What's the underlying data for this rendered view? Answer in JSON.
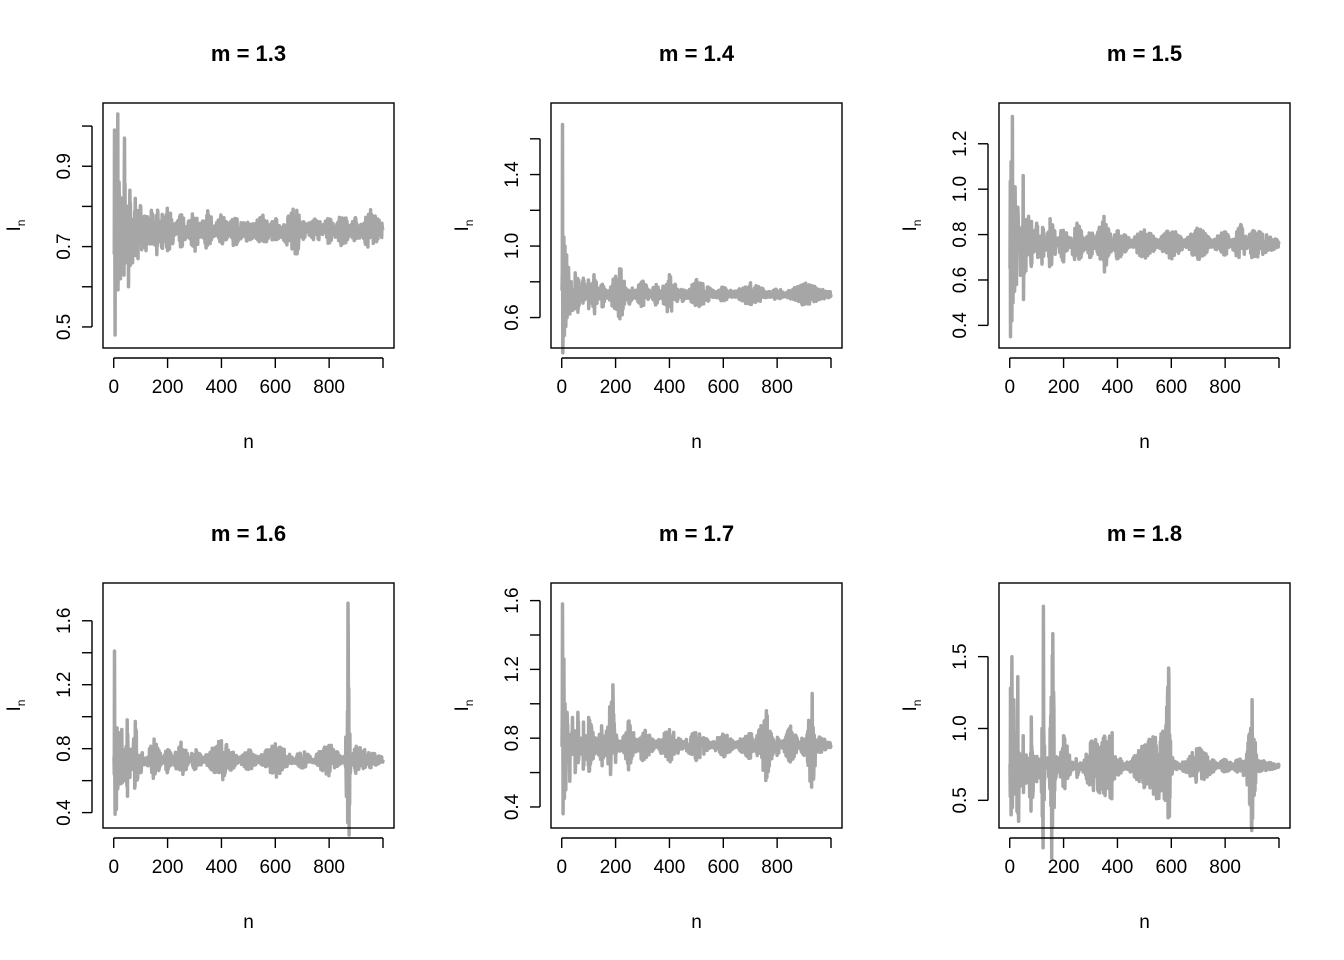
{
  "chart_data": [
    {
      "type": "line",
      "title": "m =  1.3",
      "xlabel": "n",
      "ylabel": "I",
      "ylabel_subscript": "n",
      "xlim": [
        1,
        1000
      ],
      "ylim": [
        0.47,
        1.035
      ],
      "xticks": [
        0,
        200,
        400,
        600,
        800
      ],
      "yticks": [
        0.5,
        0.6,
        0.7,
        0.8,
        0.9,
        1.0
      ],
      "ytick_labels": [
        "0.5",
        "",
        "0.7",
        "",
        "0.9",
        ""
      ],
      "line_color": "#a6a6a6",
      "series": [
        {
          "x": [
            1,
            3,
            5,
            8,
            10,
            12,
            15,
            18,
            20,
            25,
            30,
            35,
            40,
            45,
            50,
            55,
            60,
            70,
            80,
            90,
            100,
            120,
            140,
            160,
            180,
            200,
            250,
            300,
            350,
            400,
            450,
            500,
            550,
            600,
            650,
            680,
            700,
            750,
            800,
            850,
            900,
            950,
            1000
          ],
          "y": [
            0.68,
            0.99,
            0.48,
            0.6,
            0.93,
            0.63,
            1.03,
            0.7,
            0.86,
            0.62,
            0.82,
            0.64,
            0.97,
            0.66,
            0.8,
            0.6,
            0.84,
            0.66,
            0.82,
            0.67,
            0.8,
            0.69,
            0.79,
            0.68,
            0.78,
            0.69,
            0.77,
            0.7,
            0.78,
            0.71,
            0.77,
            0.72,
            0.77,
            0.72,
            0.77,
            0.79,
            0.73,
            0.76,
            0.72,
            0.77,
            0.72,
            0.78,
            0.74
          ]
        }
      ]
    },
    {
      "type": "line",
      "title": "m =  1.4",
      "xlabel": "n",
      "ylabel": "I",
      "ylabel_subscript": "n",
      "xlim": [
        1,
        1000
      ],
      "ylim": [
        0.48,
        1.75
      ],
      "xticks": [
        0,
        200,
        400,
        600,
        800
      ],
      "yticks": [
        0.6,
        0.8,
        1.0,
        1.2,
        1.4,
        1.6
      ],
      "ytick_labels": [
        "0.6",
        "",
        "1.0",
        "",
        "1.4",
        ""
      ],
      "line_color": "#a6a6a6",
      "series": [
        {
          "x": [
            1,
            3,
            5,
            8,
            10,
            12,
            15,
            18,
            20,
            25,
            30,
            35,
            40,
            50,
            60,
            80,
            100,
            120,
            150,
            200,
            220,
            250,
            300,
            350,
            400,
            450,
            500,
            600,
            700,
            800,
            900,
            1000
          ],
          "y": [
            0.75,
            1.68,
            0.52,
            1.05,
            0.5,
            1.0,
            0.55,
            0.95,
            0.6,
            0.88,
            0.62,
            0.8,
            0.64,
            0.85,
            0.63,
            0.82,
            0.65,
            0.84,
            0.66,
            0.83,
            0.87,
            0.68,
            0.8,
            0.68,
            0.84,
            0.7,
            0.8,
            0.7,
            0.78,
            0.71,
            0.78,
            0.73
          ]
        }
      ]
    },
    {
      "type": "line",
      "title": "m =  1.5",
      "xlabel": "n",
      "ylabel": "I",
      "ylabel_subscript": "n",
      "xlim": [
        1,
        1000
      ],
      "ylim": [
        0.34,
        1.34
      ],
      "xticks": [
        0,
        200,
        400,
        600,
        800
      ],
      "yticks": [
        0.4,
        0.6,
        0.8,
        1.0,
        1.2
      ],
      "ytick_labels": [
        "0.4",
        "0.6",
        "0.8",
        "1.0",
        "1.2"
      ],
      "line_color": "#a6a6a6",
      "series": [
        {
          "x": [
            1,
            3,
            5,
            8,
            10,
            12,
            15,
            18,
            20,
            25,
            30,
            40,
            50,
            60,
            70,
            80,
            100,
            120,
            150,
            200,
            250,
            300,
            350,
            400,
            500,
            600,
            700,
            800,
            860,
            900,
            1000
          ],
          "y": [
            0.65,
            0.35,
            1.12,
            0.42,
            1.32,
            0.5,
            0.9,
            0.55,
            1.01,
            0.58,
            0.92,
            0.62,
            1.06,
            0.64,
            0.88,
            0.66,
            0.85,
            0.67,
            0.87,
            0.68,
            0.85,
            0.7,
            0.88,
            0.7,
            0.82,
            0.7,
            0.82,
            0.71,
            0.84,
            0.7,
            0.76
          ]
        }
      ]
    },
    {
      "type": "line",
      "title": "m =  1.6",
      "xlabel": "n",
      "ylabel": "I",
      "ylabel_subscript": "n",
      "xlim": [
        1,
        1000
      ],
      "ylim": [
        0.36,
        1.78
      ],
      "xticks": [
        0,
        200,
        400,
        600,
        800
      ],
      "yticks": [
        0.4,
        0.6,
        0.8,
        1.0,
        1.2,
        1.4,
        1.6
      ],
      "ytick_labels": [
        "0.4",
        "",
        "0.8",
        "",
        "1.2",
        "",
        "1.6"
      ],
      "line_color": "#a6a6a6",
      "series": [
        {
          "x": [
            1,
            3,
            5,
            8,
            10,
            12,
            15,
            20,
            25,
            30,
            40,
            50,
            60,
            80,
            100,
            150,
            200,
            250,
            300,
            400,
            500,
            600,
            700,
            800,
            860,
            870,
            880,
            900,
            1000
          ],
          "y": [
            0.75,
            1.41,
            0.39,
            0.92,
            0.42,
            0.93,
            0.55,
            0.9,
            0.58,
            0.92,
            0.6,
            0.98,
            0.62,
            0.97,
            0.65,
            0.86,
            0.66,
            0.84,
            0.67,
            0.85,
            0.67,
            0.83,
            0.68,
            0.82,
            0.71,
            1.71,
            0.72,
            0.81,
            0.73
          ]
        }
      ]
    },
    {
      "type": "line",
      "title": "m =  1.7",
      "xlabel": "n",
      "ylabel": "I",
      "ylabel_subscript": "n",
      "xlim": [
        1,
        1000
      ],
      "ylim": [
        0.33,
        1.65
      ],
      "xticks": [
        0,
        200,
        400,
        600,
        800
      ],
      "yticks": [
        0.4,
        0.6,
        0.8,
        1.0,
        1.2,
        1.4,
        1.6
      ],
      "ytick_labels": [
        "0.4",
        "",
        "0.8",
        "",
        "1.2",
        "",
        "1.6"
      ],
      "line_color": "#a6a6a6",
      "series": [
        {
          "x": [
            1,
            3,
            5,
            8,
            10,
            12,
            15,
            20,
            30,
            40,
            50,
            60,
            80,
            100,
            150,
            190,
            200,
            250,
            300,
            400,
            500,
            600,
            700,
            760,
            800,
            850,
            900,
            930,
            950,
            1000
          ],
          "y": [
            0.75,
            1.58,
            0.36,
            1.26,
            0.45,
            1.0,
            0.5,
            0.95,
            0.55,
            0.92,
            0.6,
            0.95,
            0.62,
            0.92,
            0.64,
            1.11,
            0.66,
            0.9,
            0.67,
            0.85,
            0.68,
            0.82,
            0.69,
            0.96,
            0.7,
            0.87,
            0.7,
            1.06,
            0.72,
            0.76
          ]
        }
      ]
    },
    {
      "type": "line",
      "title": "m =  1.8",
      "xlabel": "n",
      "ylabel": "I",
      "ylabel_subscript": "n",
      "xlim": [
        1,
        1000
      ],
      "ylim": [
        0.37,
        1.95
      ],
      "xticks": [
        0,
        200,
        400,
        600,
        800
      ],
      "yticks": [
        0.5,
        1.0,
        1.5
      ],
      "ytick_labels": [
        "0.5",
        "1.0",
        "1.5"
      ],
      "line_color": "#a6a6a6",
      "series": [
        {
          "x": [
            1,
            3,
            5,
            8,
            10,
            15,
            20,
            30,
            40,
            50,
            60,
            80,
            100,
            120,
            125,
            130,
            150,
            160,
            170,
            200,
            250,
            300,
            380,
            400,
            500,
            580,
            590,
            600,
            700,
            800,
            880,
            900,
            920,
            1000
          ],
          "y": [
            0.75,
            1.28,
            0.4,
            1.5,
            0.45,
            1.2,
            0.55,
            1.36,
            0.6,
            0.95,
            0.62,
            1.08,
            0.63,
            1.0,
            1.85,
            0.65,
            1.0,
            1.66,
            0.65,
            0.95,
            0.66,
            0.9,
            0.97,
            0.68,
            0.88,
            1.02,
            1.42,
            0.69,
            0.86,
            0.7,
            0.82,
            1.2,
            0.71,
            0.74
          ]
        }
      ]
    }
  ]
}
